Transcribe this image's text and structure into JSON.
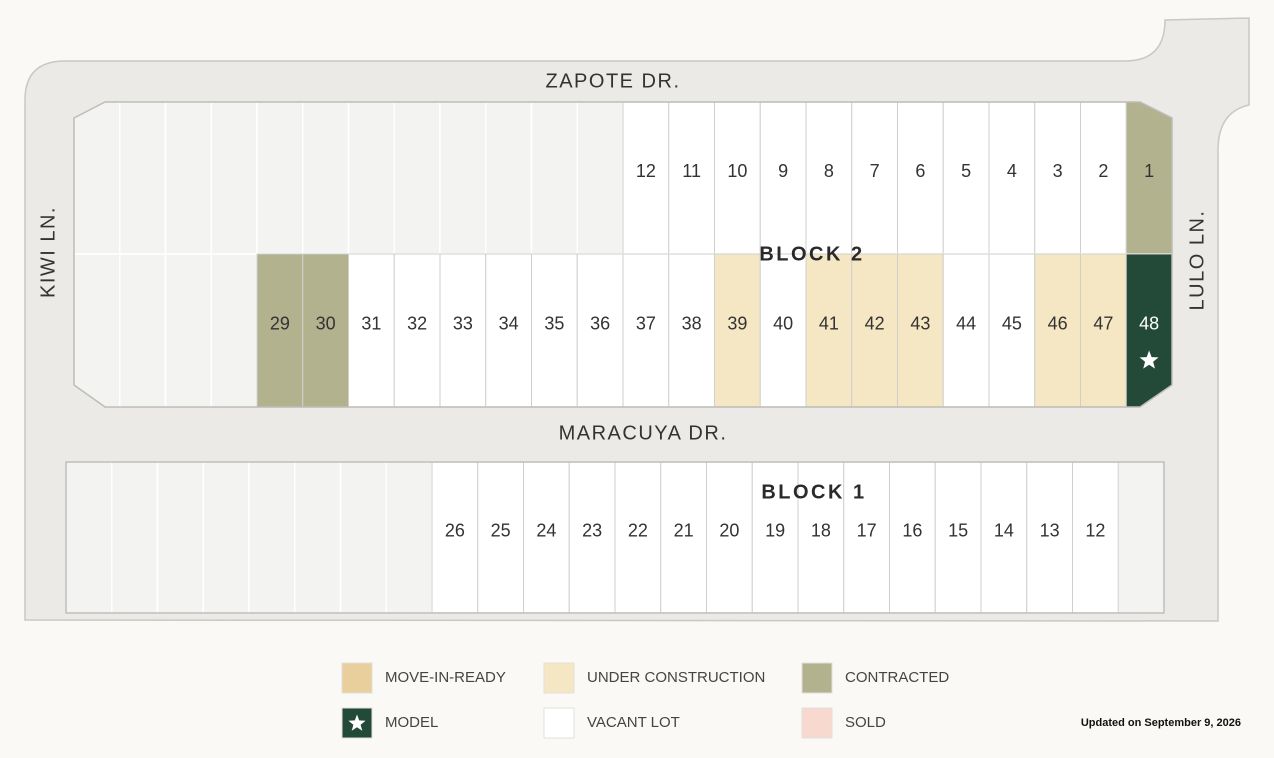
{
  "streets": {
    "north": "ZAPOTE DR.",
    "middle": "MARACUYA DR.",
    "west": "KIWI LN.",
    "east": "LULO LN."
  },
  "blocks": [
    {
      "label": "BLOCK 2",
      "rows": [
        [
          {
            "number": 12,
            "color": "#ffffff"
          },
          {
            "number": 11,
            "color": "#ffffff"
          },
          {
            "number": 10,
            "color": "#ffffff"
          },
          {
            "number": 9,
            "color": "#ffffff"
          },
          {
            "number": 8,
            "color": "#ffffff"
          },
          {
            "number": 7,
            "color": "#ffffff"
          },
          {
            "number": 6,
            "color": "#ffffff"
          },
          {
            "number": 5,
            "color": "#ffffff"
          },
          {
            "number": 4,
            "color": "#ffffff"
          },
          {
            "number": 3,
            "color": "#ffffff"
          },
          {
            "number": 2,
            "color": "#ffffff"
          },
          {
            "number": 1,
            "color": "#b2b28f"
          }
        ],
        [
          {
            "number": 29,
            "color": "#b2b28f"
          },
          {
            "number": 30,
            "color": "#b2b28f"
          },
          {
            "number": 31,
            "color": "#ffffff"
          },
          {
            "number": 32,
            "color": "#ffffff"
          },
          {
            "number": 33,
            "color": "#ffffff"
          },
          {
            "number": 34,
            "color": "#ffffff"
          },
          {
            "number": 35,
            "color": "#ffffff"
          },
          {
            "number": 36,
            "color": "#ffffff"
          },
          {
            "number": 37,
            "color": "#ffffff"
          },
          {
            "number": 38,
            "color": "#ffffff"
          },
          {
            "number": 39,
            "color": "#f5e7c4"
          },
          {
            "number": 40,
            "color": "#ffffff"
          },
          {
            "number": 41,
            "color": "#f5e7c4"
          },
          {
            "number": 42,
            "color": "#f5e7c4"
          },
          {
            "number": 43,
            "color": "#f5e7c4"
          },
          {
            "number": 44,
            "color": "#ffffff"
          },
          {
            "number": 45,
            "color": "#ffffff"
          },
          {
            "number": 46,
            "color": "#f5e7c4"
          },
          {
            "number": 47,
            "color": "#f5e7c4"
          },
          {
            "number": 48,
            "color": "#234a39",
            "star": true
          }
        ]
      ]
    },
    {
      "label": "BLOCK 1",
      "rows": [
        [
          {
            "number": 26,
            "color": "#ffffff"
          },
          {
            "number": 25,
            "color": "#ffffff"
          },
          {
            "number": 24,
            "color": "#ffffff"
          },
          {
            "number": 23,
            "color": "#ffffff"
          },
          {
            "number": 22,
            "color": "#ffffff"
          },
          {
            "number": 21,
            "color": "#ffffff"
          },
          {
            "number": 20,
            "color": "#ffffff"
          },
          {
            "number": 19,
            "color": "#ffffff"
          },
          {
            "number": 18,
            "color": "#ffffff"
          },
          {
            "number": 17,
            "color": "#ffffff"
          },
          {
            "number": 16,
            "color": "#ffffff"
          },
          {
            "number": 15,
            "color": "#ffffff"
          },
          {
            "number": 14,
            "color": "#ffffff"
          },
          {
            "number": 13,
            "color": "#ffffff"
          },
          {
            "number": 12,
            "color": "#ffffff"
          }
        ]
      ]
    }
  ],
  "legend": [
    {
      "label": "MOVE-IN-READY",
      "color": "#e8cf9b"
    },
    {
      "label": "UNDER CONSTRUCTION",
      "color": "#f5e7c4"
    },
    {
      "label": "CONTRACTED",
      "color": "#b2b28f"
    },
    {
      "label": "MODEL",
      "color": "#234a39",
      "star": true
    },
    {
      "label": "VACANT LOT",
      "color": "#ffffff"
    },
    {
      "label": "SOLD",
      "color": "#f8d9d0"
    }
  ],
  "updated": "Updated on September 9, 2026"
}
